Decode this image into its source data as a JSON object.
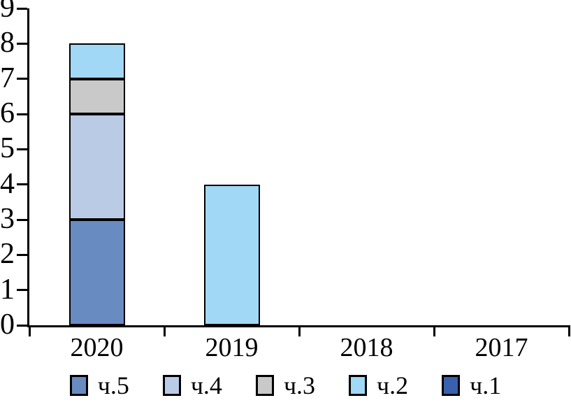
{
  "chart_data": {
    "type": "bar",
    "stacked": true,
    "title": "",
    "xlabel": "",
    "ylabel": "",
    "categories": [
      "2020",
      "2019",
      "2018",
      "2017"
    ],
    "series": [
      {
        "name": "ч.5",
        "color": "#688bc1",
        "values": [
          3,
          0,
          0,
          0
        ]
      },
      {
        "name": "ч.4",
        "color": "#bacbe6",
        "values": [
          3,
          0,
          0,
          0
        ]
      },
      {
        "name": "ч.3",
        "color": "#c9c9c9",
        "values": [
          1,
          0,
          0,
          0
        ]
      },
      {
        "name": "ч.2",
        "color": "#a0d8f5",
        "values": [
          1,
          4,
          0,
          0
        ]
      },
      {
        "name": "ч.1",
        "color": "#3a61ad",
        "values": [
          0,
          0,
          0,
          0
        ]
      }
    ],
    "stack_order_bottom_to_top": [
      "ч.5",
      "ч.4",
      "ч.3",
      "ч.2",
      "ч.1"
    ],
    "ylim": [
      0,
      9
    ],
    "yticks": [
      0,
      1,
      2,
      3,
      4,
      5,
      6,
      7,
      8,
      9
    ],
    "grid": false,
    "legend_position": "bottom",
    "legend_order": [
      "ч.5",
      "ч.4",
      "ч.3",
      "ч.2",
      "ч.1"
    ],
    "axis_color": "#000000",
    "bar_border_color": "#000000",
    "background": "#ffffff"
  }
}
